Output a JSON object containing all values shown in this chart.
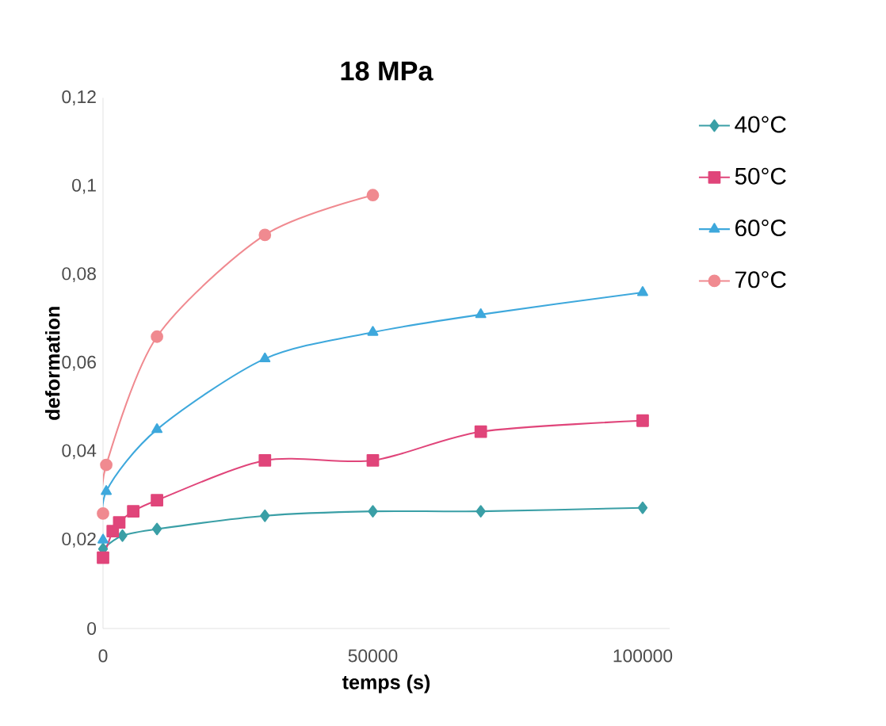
{
  "chart_data": {
    "type": "line",
    "title": "18 MPa",
    "xlabel": "temps (s)",
    "ylabel": "deformation",
    "xlim": [
      0,
      105000
    ],
    "xticks": [
      0,
      50000,
      100000
    ],
    "ylim": [
      0,
      0.12
    ],
    "yticks": [
      {
        "value": 0,
        "label": "0"
      },
      {
        "value": 0.02,
        "label": "0,02"
      },
      {
        "value": 0.04,
        "label": "0,04"
      },
      {
        "value": 0.06,
        "label": "0,06"
      },
      {
        "value": 0.08,
        "label": "0,08"
      },
      {
        "value": 0.1,
        "label": "0,1"
      },
      {
        "value": 0.12,
        "label": "0,12"
      }
    ],
    "legend": "right",
    "grid": false,
    "series": [
      {
        "name": "40°C",
        "color": "#3a9fa6",
        "marker": "diamond",
        "x": [
          0,
          3600,
          10000,
          30000,
          50000,
          70000,
          100000
        ],
        "values": [
          0.018,
          0.021,
          0.0225,
          0.0255,
          0.0265,
          0.0265,
          0.0273
        ]
      },
      {
        "name": "50°C",
        "color": "#e0457a",
        "marker": "square",
        "x": [
          0,
          1800,
          3000,
          5600,
          10000,
          30000,
          50000,
          70000,
          100000
        ],
        "values": [
          0.016,
          0.022,
          0.024,
          0.0265,
          0.029,
          0.038,
          0.038,
          0.0445,
          0.047
        ]
      },
      {
        "name": "60°C",
        "color": "#3ea8dc",
        "marker": "triangle",
        "x": [
          0,
          600,
          10000,
          30000,
          50000,
          70000,
          100000
        ],
        "values": [
          0.02,
          0.031,
          0.045,
          0.061,
          0.067,
          0.071,
          0.076
        ]
      },
      {
        "name": "70°C",
        "color": "#f08a90",
        "marker": "circle",
        "x": [
          0,
          600,
          10000,
          30000,
          50000
        ],
        "values": [
          0.026,
          0.037,
          0.066,
          0.089,
          0.098
        ]
      }
    ]
  }
}
